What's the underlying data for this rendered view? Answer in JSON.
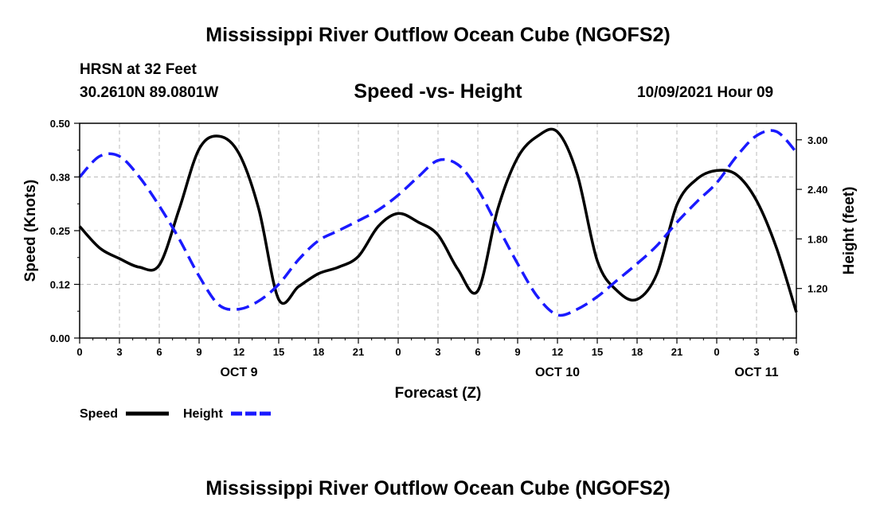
{
  "header": {
    "title": "Mississippi River Outflow Ocean Cube (NGOFS2)",
    "station": "HRSN at 32 Feet",
    "coords": "30.2610N  89.0801W",
    "subtitle": "Speed -vs- Height",
    "timestamp": "10/09/2021 Hour 09"
  },
  "footer": {
    "title": "Mississippi River Outflow Ocean Cube (NGOFS2)"
  },
  "chart_data": {
    "type": "line",
    "title": "Speed -vs- Height",
    "xlabel": "Forecast (Z)",
    "ylabel_left": "Speed (Knots)",
    "ylabel_right": "Height (feet)",
    "xlim": [
      0,
      54
    ],
    "ylim_left": [
      0,
      0.5
    ],
    "ylim_right": [
      0.6,
      3.2
    ],
    "x_ticks": [
      0,
      3,
      6,
      9,
      12,
      15,
      18,
      21,
      24,
      27,
      30,
      33,
      36,
      39,
      42,
      45,
      48,
      51,
      54
    ],
    "x_tick_labels": [
      "0",
      "3",
      "6",
      "9",
      "12",
      "15",
      "18",
      "21",
      "0",
      "3",
      "6",
      "9",
      "12",
      "15",
      "18",
      "21",
      "0",
      "3",
      "6"
    ],
    "y_left_ticks": [
      0.0,
      0.125,
      0.25,
      0.375,
      0.5
    ],
    "y_left_tick_labels": [
      "0.00",
      "0.12",
      "0.25",
      "0.38",
      "0.50"
    ],
    "y_right_ticks": [
      1.2,
      1.8,
      2.4,
      3.0
    ],
    "y_right_tick_labels": [
      "1.20",
      "1.80",
      "2.40",
      "3.00"
    ],
    "day_labels": [
      {
        "x": 12,
        "label": "OCT 9"
      },
      {
        "x": 36,
        "label": "OCT 10"
      },
      {
        "x": 51,
        "label": "OCT 11"
      }
    ],
    "grid": true,
    "legend": "bottom-left",
    "series": [
      {
        "name": "Speed",
        "axis": "left",
        "color": "#000000",
        "dash": "solid",
        "x": [
          0,
          1.5,
          3,
          4.5,
          6,
          7.5,
          9,
          10.5,
          12,
          13.5,
          15,
          16.5,
          18,
          19.5,
          21,
          22.5,
          24,
          25.5,
          27,
          28.5,
          30,
          31.5,
          33,
          34.5,
          36,
          37.5,
          39,
          40.5,
          42,
          43.5,
          45,
          46.5,
          48,
          49.5,
          51,
          52.5,
          54
        ],
        "values": [
          0.26,
          0.21,
          0.185,
          0.165,
          0.17,
          0.3,
          0.44,
          0.47,
          0.43,
          0.3,
          0.09,
          0.12,
          0.15,
          0.165,
          0.19,
          0.26,
          0.29,
          0.27,
          0.24,
          0.16,
          0.11,
          0.3,
          0.42,
          0.47,
          0.48,
          0.38,
          0.18,
          0.11,
          0.09,
          0.15,
          0.31,
          0.37,
          0.39,
          0.38,
          0.32,
          0.21,
          0.06
        ]
      },
      {
        "name": "Height",
        "axis": "right",
        "color": "#1a1aff",
        "dash": "dashed",
        "x": [
          0,
          1.5,
          3,
          4.5,
          6,
          7.5,
          9,
          10.5,
          12,
          13.5,
          15,
          16.5,
          18,
          19.5,
          21,
          22.5,
          24,
          25.5,
          27,
          28.5,
          30,
          31.5,
          33,
          34.5,
          36,
          37.5,
          39,
          40.5,
          42,
          43.5,
          45,
          46.5,
          48,
          49.5,
          51,
          52.5,
          54
        ],
        "values": [
          2.55,
          2.8,
          2.8,
          2.55,
          2.2,
          1.8,
          1.35,
          1.0,
          0.95,
          1.05,
          1.25,
          1.55,
          1.78,
          1.9,
          2.02,
          2.15,
          2.33,
          2.55,
          2.75,
          2.7,
          2.4,
          1.95,
          1.5,
          1.1,
          0.88,
          0.95,
          1.1,
          1.3,
          1.5,
          1.72,
          2.0,
          2.25,
          2.48,
          2.8,
          3.05,
          3.1,
          2.85
        ]
      }
    ]
  }
}
